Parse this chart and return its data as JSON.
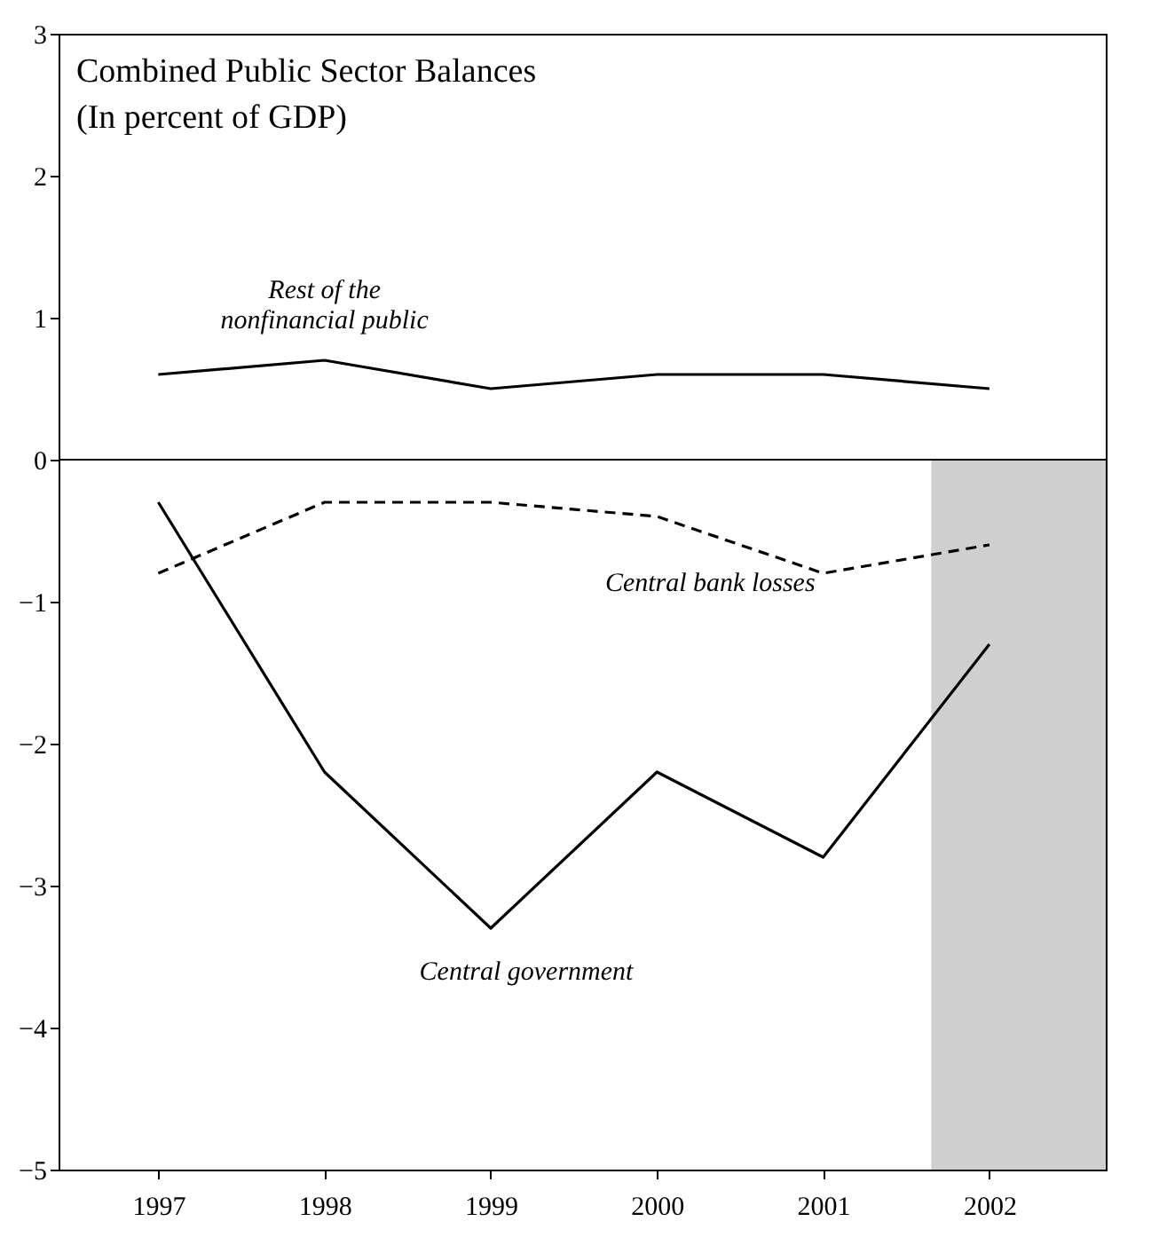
{
  "chart_data": {
    "type": "line",
    "title": "Combined Public Sector Balances",
    "subtitle": "(In percent of GDP)",
    "x": [
      1997,
      1998,
      1999,
      2000,
      2001,
      2002
    ],
    "series": [
      {
        "name": "Rest of the\nnonfinancial public",
        "color": "#000000",
        "line_style": "solid",
        "values": [
          0.6,
          0.7,
          0.5,
          0.6,
          0.6,
          0.5
        ]
      },
      {
        "name": "Central bank losses",
        "color": "#000000",
        "line_style": "dashed",
        "values": [
          -0.8,
          -0.3,
          -0.3,
          -0.4,
          -0.8,
          -0.6
        ]
      },
      {
        "name": "Central government",
        "color": "#000000",
        "line_style": "solid",
        "values": [
          -0.3,
          -2.2,
          -3.3,
          -2.2,
          -2.8,
          -1.3
        ]
      }
    ],
    "xlim": [
      1996.4,
      2002.7
    ],
    "xticks": [
      1997,
      1998,
      1999,
      2000,
      2001,
      2002
    ],
    "ylim": [
      -5,
      3
    ],
    "yticks": [
      -5,
      -4,
      -3,
      -2,
      -1,
      0,
      1,
      2,
      3
    ],
    "ref_lines": [
      {
        "axis": "y",
        "value": 0,
        "color": "#000000"
      }
    ],
    "bands": [
      {
        "axis": "x",
        "from": 2001.65,
        "to": 2002.7,
        "color": "#cfcfcf"
      }
    ],
    "grid": false,
    "marker": "none"
  }
}
